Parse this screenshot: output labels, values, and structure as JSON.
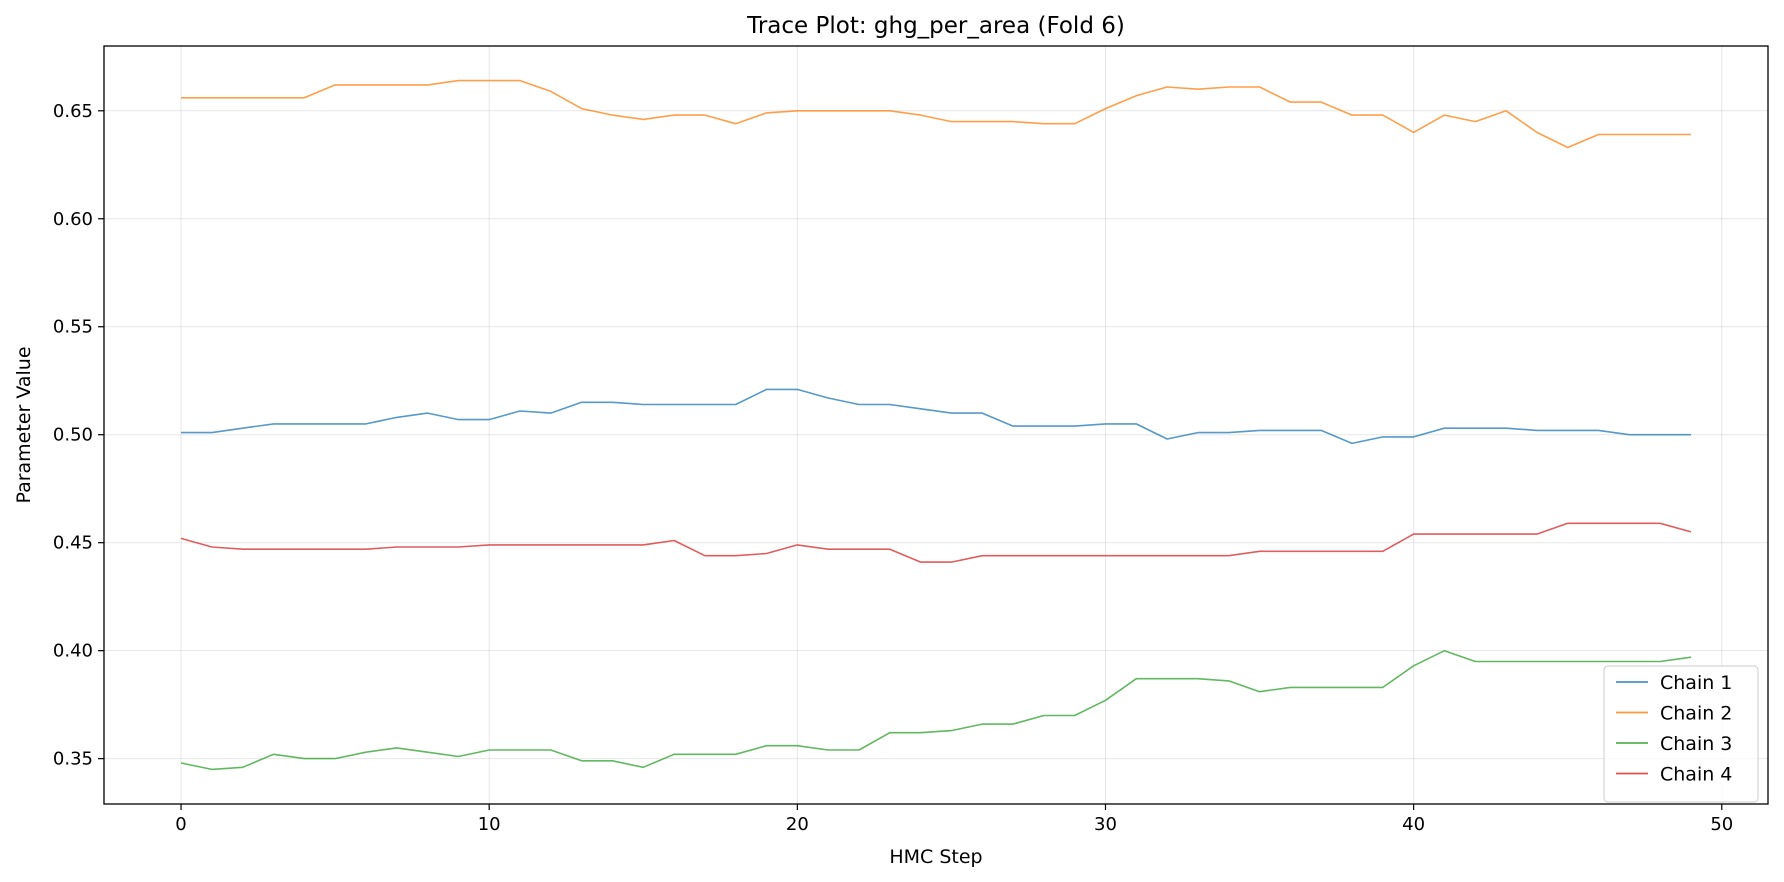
{
  "chart_data": {
    "type": "line",
    "title": "Trace Plot: ghg_per_area (Fold 6)",
    "xlabel": "HMC Step",
    "ylabel": "Parameter Value",
    "xlim": [
      -2.5,
      51.5
    ],
    "ylim": [
      0.329,
      0.68
    ],
    "xticks": [
      0,
      10,
      20,
      30,
      40,
      50
    ],
    "yticks": [
      0.35,
      0.4,
      0.45,
      0.5,
      0.55,
      0.6,
      0.65
    ],
    "ytick_labels": [
      "0.35",
      "0.40",
      "0.45",
      "0.50",
      "0.55",
      "0.60",
      "0.65"
    ],
    "grid": true,
    "legend_position": "lower-right",
    "x": [
      0,
      1,
      2,
      3,
      4,
      5,
      6,
      7,
      8,
      9,
      10,
      11,
      12,
      13,
      14,
      15,
      16,
      17,
      18,
      19,
      20,
      21,
      22,
      23,
      24,
      25,
      26,
      27,
      28,
      29,
      30,
      31,
      32,
      33,
      34,
      35,
      36,
      37,
      38,
      39,
      40,
      41,
      42,
      43,
      44,
      45,
      46,
      47,
      48,
      49
    ],
    "series": [
      {
        "name": "Chain 1",
        "color": "#1f77b4",
        "values": [
          0.501,
          0.501,
          0.503,
          0.505,
          0.505,
          0.505,
          0.505,
          0.508,
          0.51,
          0.507,
          0.507,
          0.511,
          0.51,
          0.515,
          0.515,
          0.514,
          0.514,
          0.514,
          0.514,
          0.521,
          0.521,
          0.517,
          0.514,
          0.514,
          0.512,
          0.51,
          0.51,
          0.504,
          0.504,
          0.504,
          0.505,
          0.505,
          0.498,
          0.501,
          0.501,
          0.502,
          0.502,
          0.502,
          0.496,
          0.499,
          0.499,
          0.503,
          0.503,
          0.503,
          0.502,
          0.502,
          0.502,
          0.5,
          0.5,
          0.5
        ]
      },
      {
        "name": "Chain 2",
        "color": "#ff7f0e",
        "values": [
          0.656,
          0.656,
          0.656,
          0.656,
          0.656,
          0.662,
          0.662,
          0.662,
          0.662,
          0.664,
          0.664,
          0.664,
          0.659,
          0.651,
          0.648,
          0.646,
          0.648,
          0.648,
          0.644,
          0.649,
          0.65,
          0.65,
          0.65,
          0.65,
          0.648,
          0.645,
          0.645,
          0.645,
          0.644,
          0.644,
          0.651,
          0.657,
          0.661,
          0.66,
          0.661,
          0.661,
          0.654,
          0.654,
          0.648,
          0.648,
          0.64,
          0.648,
          0.645,
          0.65,
          0.64,
          0.633,
          0.639,
          0.639,
          0.639,
          0.639
        ]
      },
      {
        "name": "Chain 3",
        "color": "#2ca02c",
        "values": [
          0.348,
          0.345,
          0.346,
          0.352,
          0.35,
          0.35,
          0.353,
          0.355,
          0.353,
          0.351,
          0.354,
          0.354,
          0.354,
          0.349,
          0.349,
          0.346,
          0.352,
          0.352,
          0.352,
          0.356,
          0.356,
          0.354,
          0.354,
          0.362,
          0.362,
          0.363,
          0.366,
          0.366,
          0.37,
          0.37,
          0.377,
          0.387,
          0.387,
          0.387,
          0.386,
          0.381,
          0.383,
          0.383,
          0.383,
          0.383,
          0.393,
          0.4,
          0.395,
          0.395,
          0.395,
          0.395,
          0.395,
          0.395,
          0.395,
          0.397
        ]
      },
      {
        "name": "Chain 4",
        "color": "#d62728",
        "values": [
          0.452,
          0.448,
          0.447,
          0.447,
          0.447,
          0.447,
          0.447,
          0.448,
          0.448,
          0.448,
          0.449,
          0.449,
          0.449,
          0.449,
          0.449,
          0.449,
          0.451,
          0.444,
          0.444,
          0.445,
          0.449,
          0.447,
          0.447,
          0.447,
          0.441,
          0.441,
          0.444,
          0.444,
          0.444,
          0.444,
          0.444,
          0.444,
          0.444,
          0.444,
          0.444,
          0.446,
          0.446,
          0.446,
          0.446,
          0.446,
          0.454,
          0.454,
          0.454,
          0.454,
          0.454,
          0.459,
          0.459,
          0.459,
          0.459,
          0.455
        ]
      }
    ]
  }
}
